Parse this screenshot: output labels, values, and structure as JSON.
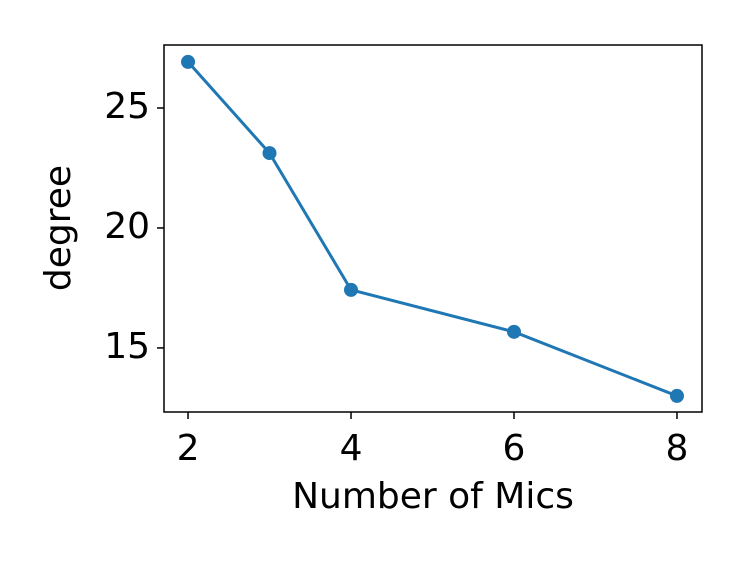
{
  "chart_data": {
    "type": "line",
    "xlabel": "Number of Mics",
    "ylabel": "degree",
    "x": [
      2,
      3,
      4,
      6,
      8
    ],
    "series": [
      {
        "name": null,
        "color": "#1f77b4",
        "values": [
          26.92,
          23.12,
          17.42,
          15.67,
          13.0
        ]
      }
    ],
    "xlim": [
      1.705,
      8.307
    ],
    "ylim": [
      12.33,
      27.625
    ],
    "xticks": [
      2,
      4,
      6,
      8
    ],
    "yticks": [
      15,
      20,
      25
    ],
    "grid": false
  }
}
